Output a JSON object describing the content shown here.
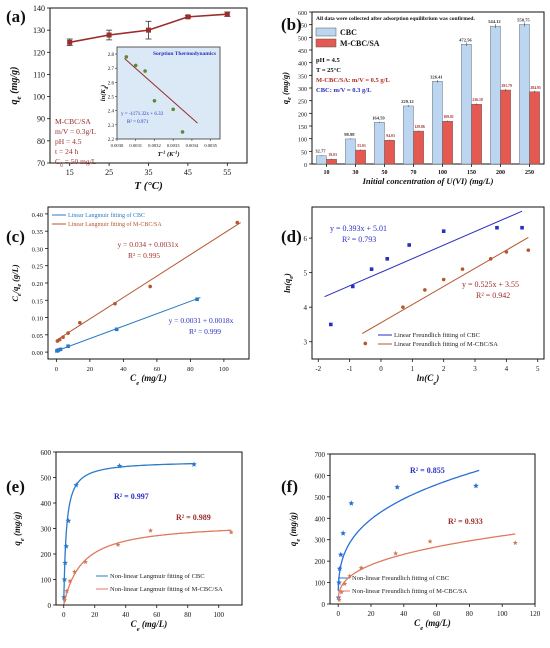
{
  "chart_data": [
    {
      "panel": "(a)",
      "type": "line",
      "x": [
        15,
        25,
        35,
        45,
        55
      ],
      "y": [
        124.5,
        127.8,
        130.0,
        136.0,
        137.2
      ],
      "yerr": [
        1.5,
        2.2,
        4.0,
        0.5,
        1.0
      ],
      "xlabel": "T (°C)",
      "ylabel": "q_e (mg/g)",
      "xlim": [
        10,
        60
      ],
      "ylim": [
        70,
        140
      ],
      "xticks": [
        "15",
        "25",
        "35",
        "45",
        "55"
      ],
      "yticks": [
        "70",
        "80",
        "90",
        "100",
        "110",
        "120",
        "130",
        "140"
      ],
      "annotations": [
        "M-CBC/SA",
        "m/V = 0.3g/L",
        "pH = 4.5",
        "t = 24 h",
        "C_0 = 50 mg/L"
      ],
      "color": "#9b2d2a",
      "inset": {
        "title": "Sorption Thermodynamics",
        "type": "scatter",
        "x": [
          0.00305,
          0.0031,
          0.00315,
          0.0032,
          0.0033,
          0.00335
        ],
        "y": [
          2.78,
          2.72,
          2.68,
          2.47,
          2.41,
          2.25
        ],
        "xlabel": "T^-1 (K^-1)",
        "ylabel": "ln(K_d)",
        "xlim": [
          0.003,
          0.00355
        ],
        "ylim": [
          2.2,
          2.85
        ],
        "xticks": [
          "0.0030",
          "0.0031",
          "0.0032",
          "0.0033",
          "0.0034",
          "0.0035"
        ],
        "yticks": [
          "2.2",
          "2.3",
          "2.4",
          "2.5",
          "2.6",
          "2.7",
          "2.8"
        ],
        "fit": {
          "slope": -1171.32,
          "intercept": 6.33
        },
        "equation": "y = -1171.32x + 6.33",
        "r2": "R² = 0.971"
      }
    },
    {
      "panel": "(b)",
      "type": "bar",
      "note": "All data were collected after adsorption equilibrium was confirmed.",
      "categories": [
        "10",
        "30",
        "50",
        "70",
        "100",
        "150",
        "200",
        "250"
      ],
      "series": [
        {
          "name": "CBC",
          "values": [
            32.77,
            98.98,
            164.59,
            229.12,
            326.41,
            472.56,
            544.12,
            550.75
          ],
          "labels": [
            "32.77",
            "98.98",
            "164.59",
            "229.12",
            "326.41",
            "472.56",
            "544.12",
            "550.75"
          ],
          "color": "#bcd6f2"
        },
        {
          "name": "M-CBC/SA",
          "values": [
            19.03,
            55.0,
            94.0,
            130.0,
            169.0,
            236.0,
            292.0,
            285.0
          ],
          "labels": [
            "19.03",
            "55.01",
            "94.03",
            "129.86",
            "169.01",
            "236.18",
            "291.79",
            "284.95"
          ],
          "color": "#e45a50"
        }
      ],
      "xlabel": "Initial concentration of U(VI) (mg/L)",
      "ylabel": "q_e (mg/g)",
      "ylim": [
        0,
        600
      ],
      "yticks": [
        "0",
        "50",
        "100",
        "150",
        "200",
        "250",
        "300",
        "350",
        "400",
        "450",
        "500",
        "550",
        "600"
      ],
      "annotations": [
        "pH = 4.5",
        "T = 25°C",
        "M-CBC/SA: m/V = 0.5 g/L",
        "CBC: m/V = 0.3 g/L"
      ]
    },
    {
      "panel": "(c)",
      "type": "scatter",
      "series": [
        {
          "name": "Linear Langmuir fitting of CBC",
          "x": [
            0.32,
            0.7,
            1.2,
            2.5,
            7.0,
            36.0,
            84.0
          ],
          "y": [
            0.0035,
            0.004,
            0.006,
            0.008,
            0.017,
            0.066,
            0.153
          ],
          "fit": {
            "slope": 0.0018,
            "intercept": 0.0031
          },
          "equation": "y = 0.0031 + 0.0018x",
          "r2": "R² = 0.999",
          "color": "#2a7bc8"
        },
        {
          "name": "Linear Langmuir fitting of M-CBC/SA",
          "x": [
            0.6,
            2.0,
            4.0,
            7.0,
            14.0,
            35.0,
            56.0,
            108.0
          ],
          "y": [
            0.032,
            0.036,
            0.043,
            0.055,
            0.085,
            0.14,
            0.19,
            0.375
          ],
          "fit": {
            "slope": 0.0031,
            "intercept": 0.034
          },
          "equation": "y = 0.034 + 0.0031x",
          "r2": "R² = 0.995",
          "color": "#b5562e"
        }
      ],
      "xlabel": "C_e (mg/L)",
      "ylabel": "C_e/q_e (g/L)",
      "xlim": [
        -5,
        115
      ],
      "ylim": [
        -0.02,
        0.42
      ],
      "xticks": [
        "0",
        "20",
        "40",
        "60",
        "80",
        "100"
      ],
      "yticks": [
        "0.00",
        "0.05",
        "0.10",
        "0.15",
        "0.20",
        "0.25",
        "0.30",
        "0.35",
        "0.40"
      ]
    },
    {
      "panel": "(d)",
      "type": "scatter",
      "series": [
        {
          "name": "Linear Freundlich fitting of CBC",
          "x": [
            -1.6,
            -0.9,
            -0.3,
            0.2,
            0.9,
            2.0,
            3.7,
            4.5
          ],
          "y": [
            3.5,
            4.6,
            5.1,
            5.4,
            5.8,
            6.2,
            6.3,
            6.3
          ],
          "fit": {
            "slope": 0.393,
            "intercept": 5.01
          },
          "equation": "y = 0.393x + 5.01",
          "r2": "R² = 0.793",
          "color": "#2a2fc0"
        },
        {
          "name": "Linear Freundlich fitting of M-CBC/SA",
          "x": [
            -0.5,
            0.7,
            1.4,
            2.0,
            2.6,
            3.5,
            4.0,
            4.7
          ],
          "y": [
            2.95,
            4.0,
            4.5,
            4.8,
            5.1,
            5.4,
            5.6,
            5.65
          ],
          "fit": {
            "slope": 0.525,
            "intercept": 3.55
          },
          "equation": "y = 0.525x + 3.55",
          "r2": "R² = 0.942",
          "color": "#b5562e"
        }
      ],
      "xlabel": "ln(C_e)",
      "ylabel": "ln(q_e)",
      "xlim": [
        -2.2,
        5.2
      ],
      "ylim": [
        2.5,
        6.9
      ],
      "xticks": [
        "-2",
        "-1",
        "0",
        "1",
        "2",
        "3",
        "4",
        "5"
      ],
      "yticks": [
        "3",
        "4",
        "5",
        "6"
      ]
    },
    {
      "panel": "(e)",
      "type": "scatter",
      "series": [
        {
          "name": "Non-linear Langmuir fitting of CBC",
          "x": [
            0.2,
            0.5,
            0.9,
            1.6,
            3.0,
            8.0,
            36.0,
            84.0
          ],
          "y": [
            30,
            100,
            165,
            230,
            330,
            470,
            545,
            551
          ],
          "model": {
            "qm": 565,
            "K": 0.62
          },
          "r2": "R² = 0.997",
          "color": "#2a7bc8"
        },
        {
          "name": "Non-linear Langmuir fitting of M-CBC/SA",
          "x": [
            0.6,
            2.0,
            4.0,
            7.0,
            14.0,
            35.0,
            56.0,
            108.0
          ],
          "y": [
            19,
            55,
            94,
            130,
            169,
            236,
            292,
            285
          ],
          "model": {
            "qm": 325,
            "K": 0.085
          },
          "r2": "R² = 0.989",
          "color": "#e07a5f"
        }
      ],
      "xlabel": "C_e (mg/L)",
      "ylabel": "q_e (mg/g)",
      "xlim": [
        -5,
        115
      ],
      "ylim": [
        0,
        600
      ],
      "xticks": [
        "0",
        "20",
        "40",
        "60",
        "80",
        "100"
      ],
      "yticks": [
        "0",
        "100",
        "200",
        "300",
        "400",
        "500",
        "600"
      ]
    },
    {
      "panel": "(f)",
      "type": "scatter",
      "series": [
        {
          "name": "Non-linear Freundlich fitting of CBC",
          "x": [
            0.2,
            0.5,
            0.9,
            1.6,
            3.0,
            8.0,
            36.0,
            84.0
          ],
          "y": [
            30,
            100,
            165,
            230,
            330,
            470,
            545,
            551
          ],
          "model": {
            "K": 155,
            "n": 3.2
          },
          "r2": "R² = 0.855",
          "color": "#2a6fd8"
        },
        {
          "name": "Non-linear Freundlich fitting of M-CBC/SA",
          "x": [
            0.6,
            2.0,
            4.0,
            7.0,
            14.0,
            35.0,
            56.0,
            108.0
          ],
          "y": [
            19,
            55,
            94,
            130,
            169,
            236,
            292,
            285
          ],
          "model": {
            "K": 65,
            "n": 2.9
          },
          "r2": "R² = 0.933",
          "color": "#e07a5f"
        }
      ],
      "xlabel": "C_e (mg/L)",
      "ylabel": "q_e (mg/g)",
      "xlim": [
        -5,
        120
      ],
      "ylim": [
        0,
        700
      ],
      "xticks": [
        "0",
        "20",
        "40",
        "60",
        "80",
        "100",
        "120"
      ],
      "yticks": [
        "0",
        "100",
        "200",
        "300",
        "400",
        "500",
        "600",
        "700"
      ]
    }
  ]
}
